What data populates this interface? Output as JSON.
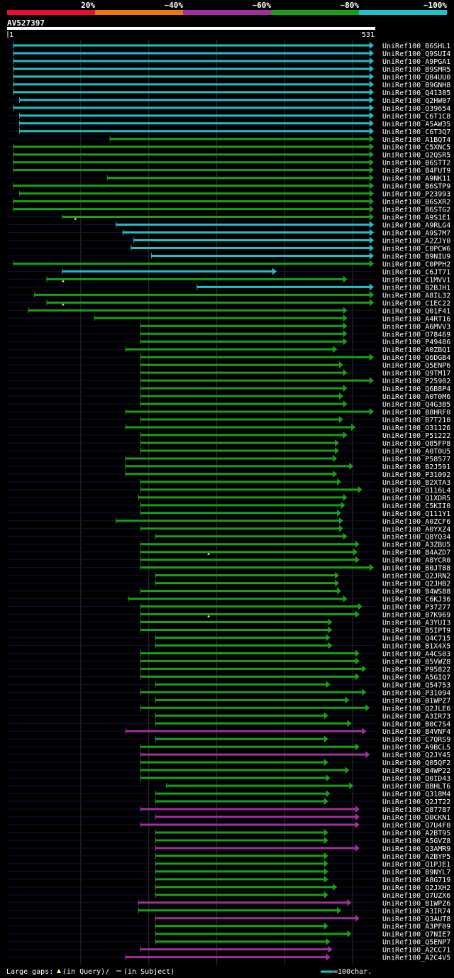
{
  "legend": {
    "bands": [
      {
        "label": "20%",
        "color": "#e8102e"
      },
      {
        "label": "~40%",
        "color": "#e87810"
      },
      {
        "label": "~60%",
        "color": "#a0309a"
      },
      {
        "label": "~80%",
        "color": "#18a018"
      },
      {
        "label": "~100%",
        "color": "#20c0c8"
      }
    ]
  },
  "query": {
    "id": "AV527397",
    "start": "1",
    "end": "531",
    "length": 531
  },
  "footer": {
    "gaps_label": "Large gaps:",
    "query_gap_text": "(in Query)/",
    "subject_gap_text": "(in Subject)",
    "scale_text": "=100char."
  },
  "colors": {
    "cyan": "#20c0c8",
    "green": "#18a018",
    "purple": "#a030a0",
    "background": "#000000",
    "text": "#ffffff",
    "gridline": "#303030",
    "baseline": "#101040",
    "query_gap": "#ffff66"
  },
  "hits": [
    {
      "name": "UniRef100_B6SHL1",
      "s": 1,
      "e": 531,
      "c": "cyan"
    },
    {
      "name": "UniRef100_Q9SUI4",
      "s": 1,
      "e": 531,
      "c": "cyan"
    },
    {
      "name": "UniRef100_A9PGA1",
      "s": 1,
      "e": 531,
      "c": "cyan"
    },
    {
      "name": "UniRef100_B9SMR5",
      "s": 1,
      "e": 531,
      "c": "cyan"
    },
    {
      "name": "UniRef100_Q84UU0",
      "s": 1,
      "e": 531,
      "c": "cyan"
    },
    {
      "name": "UniRef100_B9GNH8",
      "s": 1,
      "e": 531,
      "c": "cyan"
    },
    {
      "name": "UniRef100_Q41385",
      "s": 1,
      "e": 531,
      "c": "cyan"
    },
    {
      "name": "UniRef100_Q2HW07",
      "s": 10,
      "e": 531,
      "c": "cyan"
    },
    {
      "name": "UniRef100_Q39654",
      "s": 1,
      "e": 531,
      "c": "cyan"
    },
    {
      "name": "UniRef100_C6T1C8",
      "s": 10,
      "e": 531,
      "c": "cyan"
    },
    {
      "name": "UniRef100_A5AW35",
      "s": 10,
      "e": 531,
      "c": "cyan"
    },
    {
      "name": "UniRef100_C6T3Q7",
      "s": 10,
      "e": 531,
      "c": "cyan"
    },
    {
      "name": "UniRef100_A1BQT4",
      "s": 143,
      "e": 531,
      "c": "green"
    },
    {
      "name": "UniRef100_C5XNC5",
      "s": 1,
      "e": 531,
      "c": "green"
    },
    {
      "name": "UniRef100_Q2QSR5",
      "s": 1,
      "e": 531,
      "c": "green"
    },
    {
      "name": "UniRef100_B6STT2",
      "s": 1,
      "e": 531,
      "c": "green"
    },
    {
      "name": "UniRef100_B4FUT9",
      "s": 1,
      "e": 531,
      "c": "green"
    },
    {
      "name": "UniRef100_A9NK11",
      "s": 139,
      "e": 531,
      "c": "green"
    },
    {
      "name": "UniRef100_B6STP9",
      "s": 1,
      "e": 531,
      "c": "green"
    },
    {
      "name": "UniRef100_P23993",
      "s": 10,
      "e": 531,
      "c": "green"
    },
    {
      "name": "UniRef100_B6SXR2",
      "s": 1,
      "e": 531,
      "c": "green"
    },
    {
      "name": "UniRef100_B6STG2",
      "s": 1,
      "e": 531,
      "c": "green"
    },
    {
      "name": "UniRef100_A9S1E1",
      "s": 73,
      "e": 531,
      "c": "green",
      "qgap": 92
    },
    {
      "name": "UniRef100_A9RLG4",
      "s": 152,
      "e": 531,
      "c": "cyan"
    },
    {
      "name": "UniRef100_A9S7M7",
      "s": 162,
      "e": 531,
      "c": "cyan"
    },
    {
      "name": "UniRef100_A2ZJY0",
      "s": 178,
      "e": 531,
      "c": "cyan"
    },
    {
      "name": "UniRef100_C0PCW6",
      "s": 174,
      "e": 531,
      "c": "cyan"
    },
    {
      "name": "UniRef100_B9NIU9",
      "s": 204,
      "e": 531,
      "c": "cyan"
    },
    {
      "name": "UniRef100_C0PPH2",
      "s": 1,
      "e": 531,
      "c": "green"
    },
    {
      "name": "UniRef100_C6JT71",
      "s": 73,
      "e": 388,
      "c": "cyan"
    },
    {
      "name": "UniRef100_C1MVV1",
      "s": 50,
      "e": 492,
      "c": "green",
      "qgap": 74
    },
    {
      "name": "UniRef100_B2BJH1",
      "s": 271,
      "e": 531,
      "c": "cyan"
    },
    {
      "name": "UniRef100_A8IL32",
      "s": 32,
      "e": 531,
      "c": "green"
    },
    {
      "name": "UniRef100_C1EC22",
      "s": 50,
      "e": 531,
      "c": "green",
      "qgap": 74
    },
    {
      "name": "UniRef100_Q01F41",
      "s": 23,
      "e": 492,
      "c": "green"
    },
    {
      "name": "UniRef100_A4RT16",
      "s": 120,
      "e": 492,
      "c": "green"
    },
    {
      "name": "UniRef100_A6MVV3",
      "s": 188,
      "e": 492,
      "c": "green"
    },
    {
      "name": "UniRef100_O78469",
      "s": 188,
      "e": 492,
      "c": "green"
    },
    {
      "name": "UniRef100_P49486",
      "s": 188,
      "e": 492,
      "c": "green"
    },
    {
      "name": "UniRef100_A0ZBQ1",
      "s": 166,
      "e": 477,
      "c": "green"
    },
    {
      "name": "UniRef100_Q6DGB4",
      "s": 188,
      "e": 531,
      "c": "green"
    },
    {
      "name": "UniRef100_Q5ENP6",
      "s": 188,
      "e": 486,
      "c": "green"
    },
    {
      "name": "UniRef100_Q9TM17",
      "s": 188,
      "e": 492,
      "c": "green"
    },
    {
      "name": "UniRef100_P25902",
      "s": 188,
      "e": 531,
      "c": "green"
    },
    {
      "name": "UniRef100_Q6B8P4",
      "s": 188,
      "e": 492,
      "c": "green"
    },
    {
      "name": "UniRef100_A0T0M6",
      "s": 188,
      "e": 486,
      "c": "green"
    },
    {
      "name": "UniRef100_Q4G3B5",
      "s": 188,
      "e": 492,
      "c": "green"
    },
    {
      "name": "UniRef100_B8HRF0",
      "s": 166,
      "e": 531,
      "c": "green"
    },
    {
      "name": "UniRef100_B7T210",
      "s": 188,
      "e": 486,
      "c": "green"
    },
    {
      "name": "UniRef100_O31126",
      "s": 166,
      "e": 504,
      "c": "green"
    },
    {
      "name": "UniRef100_P51222",
      "s": 188,
      "e": 492,
      "c": "green"
    },
    {
      "name": "UniRef100_Q85FP8",
      "s": 188,
      "e": 480,
      "c": "green"
    },
    {
      "name": "UniRef100_A0T0U5",
      "s": 188,
      "e": 480,
      "c": "green"
    },
    {
      "name": "UniRef100_P58577",
      "s": 166,
      "e": 477,
      "c": "green"
    },
    {
      "name": "UniRef100_B2J591",
      "s": 166,
      "e": 501,
      "c": "green"
    },
    {
      "name": "UniRef100_P31092",
      "s": 166,
      "e": 477,
      "c": "green"
    },
    {
      "name": "UniRef100_B2XTA3",
      "s": 188,
      "e": 483,
      "c": "green"
    },
    {
      "name": "UniRef100_Q116L4",
      "s": 188,
      "e": 514,
      "c": "green"
    },
    {
      "name": "UniRef100_Q1XDR5",
      "s": 185,
      "e": 492,
      "c": "green"
    },
    {
      "name": "UniRef100_C5KII0",
      "s": 188,
      "e": 489,
      "c": "green"
    },
    {
      "name": "UniRef100_Q111Y1",
      "s": 188,
      "e": 483,
      "c": "green"
    },
    {
      "name": "UniRef100_A0ZCF6",
      "s": 152,
      "e": 486,
      "c": "green"
    },
    {
      "name": "UniRef100_A0YXZ4",
      "s": 188,
      "e": 486,
      "c": "green"
    },
    {
      "name": "UniRef100_Q8YQ34",
      "s": 210,
      "e": 492,
      "c": "green"
    },
    {
      "name": "UniRef100_A3ZBU5",
      "s": 188,
      "e": 510,
      "c": "green"
    },
    {
      "name": "UniRef100_B4AZD7",
      "s": 188,
      "e": 507,
      "c": "green",
      "qgap": 288
    },
    {
      "name": "UniRef100_A8YCR0",
      "s": 188,
      "e": 510,
      "c": "green"
    },
    {
      "name": "UniRef100_B0JT88",
      "s": 188,
      "e": 531,
      "c": "green"
    },
    {
      "name": "UniRef100_Q2JRN2",
      "s": 210,
      "e": 480,
      "c": "green"
    },
    {
      "name": "UniRef100_Q2JHB2",
      "s": 210,
      "e": 480,
      "c": "green"
    },
    {
      "name": "UniRef100_B4WS88",
      "s": 188,
      "e": 483,
      "c": "green"
    },
    {
      "name": "UniRef100_C6KJ36",
      "s": 170,
      "e": 492,
      "c": "green"
    },
    {
      "name": "UniRef100_P37277",
      "s": 188,
      "e": 514,
      "c": "green"
    },
    {
      "name": "UniRef100_B7K969",
      "s": 188,
      "e": 510,
      "c": "green",
      "qgap": 288
    },
    {
      "name": "UniRef100_A3YUI3",
      "s": 188,
      "e": 470,
      "c": "green"
    },
    {
      "name": "UniRef100_B5IPT9",
      "s": 188,
      "e": 470,
      "c": "green"
    },
    {
      "name": "UniRef100_Q4C715",
      "s": 210,
      "e": 467,
      "c": "green"
    },
    {
      "name": "UniRef100_B1X4X5",
      "s": 210,
      "e": 470,
      "c": "green"
    },
    {
      "name": "UniRef100_A4CS03",
      "s": 188,
      "e": 510,
      "c": "green"
    },
    {
      "name": "UniRef100_B5VWZ8",
      "s": 188,
      "e": 510,
      "c": "green"
    },
    {
      "name": "UniRef100_P95822",
      "s": 188,
      "e": 520,
      "c": "green"
    },
    {
      "name": "UniRef100_A5GIQ7",
      "s": 188,
      "e": 510,
      "c": "green"
    },
    {
      "name": "UniRef100_Q54753",
      "s": 210,
      "e": 467,
      "c": "green"
    },
    {
      "name": "UniRef100_P31094",
      "s": 188,
      "e": 520,
      "c": "green"
    },
    {
      "name": "UniRef100_B1WPZ7",
      "s": 210,
      "e": 495,
      "c": "green"
    },
    {
      "name": "UniRef100_Q2JLE6",
      "s": 188,
      "e": 525,
      "c": "green"
    },
    {
      "name": "UniRef100_A3IR73",
      "s": 210,
      "e": 464,
      "c": "green"
    },
    {
      "name": "UniRef100_B0C7S4",
      "s": 210,
      "e": 498,
      "c": "green"
    },
    {
      "name": "UniRef100_B4VNF4",
      "s": 166,
      "e": 520,
      "c": "purple"
    },
    {
      "name": "UniRef100_C7QRS9",
      "s": 210,
      "e": 464,
      "c": "green"
    },
    {
      "name": "UniRef100_A9BCL5",
      "s": 188,
      "e": 510,
      "c": "green"
    },
    {
      "name": "UniRef100_Q2JY45",
      "s": 188,
      "e": 525,
      "c": "purple"
    },
    {
      "name": "UniRef100_Q05QF2",
      "s": 188,
      "e": 464,
      "c": "green"
    },
    {
      "name": "UniRef100_B4WP22",
      "s": 188,
      "e": 495,
      "c": "green"
    },
    {
      "name": "UniRef100_Q0ID43",
      "s": 188,
      "e": 467,
      "c": "green"
    },
    {
      "name": "UniRef100_B8HLT6",
      "s": 226,
      "e": 501,
      "c": "green"
    },
    {
      "name": "UniRef100_Q318M4",
      "s": 210,
      "e": 467,
      "c": "green"
    },
    {
      "name": "UniRef100_Q2JT22",
      "s": 210,
      "e": 464,
      "c": "green"
    },
    {
      "name": "UniRef100_Q87787",
      "s": 188,
      "e": 510,
      "c": "purple"
    },
    {
      "name": "UniRef100_D0CKN1",
      "s": 210,
      "e": 510,
      "c": "purple"
    },
    {
      "name": "UniRef100_Q7U4F0",
      "s": 188,
      "e": 510,
      "c": "purple"
    },
    {
      "name": "UniRef100_A2BT95",
      "s": 210,
      "e": 464,
      "c": "green"
    },
    {
      "name": "UniRef100_A5GVZ8",
      "s": 210,
      "e": 464,
      "c": "green"
    },
    {
      "name": "UniRef100_Q3AMR9",
      "s": 210,
      "e": 510,
      "c": "purple"
    },
    {
      "name": "UniRef100_A2BYP5",
      "s": 210,
      "e": 464,
      "c": "green"
    },
    {
      "name": "UniRef100_Q1PJE1",
      "s": 210,
      "e": 464,
      "c": "green"
    },
    {
      "name": "UniRef100_B9NYL7",
      "s": 210,
      "e": 464,
      "c": "green"
    },
    {
      "name": "UniRef100_A8G719",
      "s": 210,
      "e": 464,
      "c": "green"
    },
    {
      "name": "UniRef100_Q2JXH2",
      "s": 210,
      "e": 477,
      "c": "green"
    },
    {
      "name": "UniRef100_Q7UZX6",
      "s": 210,
      "e": 464,
      "c": "green"
    },
    {
      "name": "UniRef100_B1WPZ6",
      "s": 185,
      "e": 498,
      "c": "purple"
    },
    {
      "name": "UniRef100_A3IR74",
      "s": 185,
      "e": 483,
      "c": "green"
    },
    {
      "name": "UniRef100_Q3AUT8",
      "s": 210,
      "e": 510,
      "c": "purple"
    },
    {
      "name": "UniRef100_A3PF09",
      "s": 210,
      "e": 464,
      "c": "green"
    },
    {
      "name": "UniRef100_Q7NIE7",
      "s": 210,
      "e": 498,
      "c": "green"
    },
    {
      "name": "UniRef100_Q5ENP7",
      "s": 210,
      "e": 467,
      "c": "green"
    },
    {
      "name": "UniRef100_A2CC71",
      "s": 188,
      "e": 470,
      "c": "purple"
    },
    {
      "name": "UniRef100_A2C4V5",
      "s": 166,
      "e": 467,
      "c": "purple"
    }
  ]
}
